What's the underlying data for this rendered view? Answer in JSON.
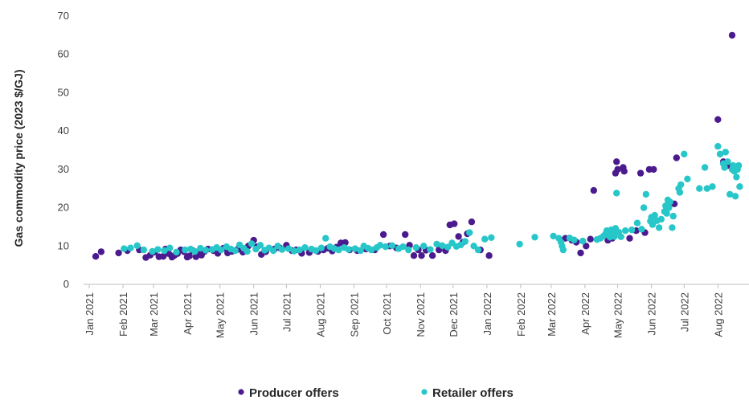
{
  "chart_data": {
    "type": "scatter",
    "title": "",
    "xlabel": "",
    "ylabel": "Gas commodity price (2023 $/GJ)",
    "ylim": [
      0,
      70
    ],
    "yticks": [
      0,
      10,
      20,
      30,
      40,
      50,
      60,
      70
    ],
    "grid": false,
    "legend_position": "bottom",
    "x_tick_labels": [
      "Jan 2021",
      "Feb 2021",
      "Mar 2021",
      "Apr 2021",
      "May 2021",
      "Jun 2021",
      "Jul 2021",
      "Aug 2021",
      "Sep 2021",
      "Oct 2021",
      "Nov 2021",
      "Dec 2021",
      "Jan 2022",
      "Feb 2022",
      "Mar 2022",
      "Apr 2022",
      "May 2022",
      "Jun 2022",
      "Jul 2022",
      "Aug 2022"
    ],
    "series": [
      {
        "name": "Producer offers",
        "color": "#4b1a8e",
        "points": [
          [
            "2021-01-07",
            7.3
          ],
          [
            "2021-01-12",
            8.5
          ],
          [
            "2021-01-28",
            8.2
          ],
          [
            "2021-02-05",
            8.8
          ],
          [
            "2021-02-16",
            9.0
          ],
          [
            "2021-02-22",
            7.0
          ],
          [
            "2021-02-26",
            7.6
          ],
          [
            "2021-03-02",
            8.4
          ],
          [
            "2021-03-06",
            7.2
          ],
          [
            "2021-03-10",
            7.3
          ],
          [
            "2021-03-12",
            9.2
          ],
          [
            "2021-03-15",
            8.0
          ],
          [
            "2021-03-18",
            7.1
          ],
          [
            "2021-03-20",
            7.5
          ],
          [
            "2021-03-23",
            8.0
          ],
          [
            "2021-03-26",
            9.0
          ],
          [
            "2021-03-29",
            8.5
          ],
          [
            "2021-04-01",
            7.1
          ],
          [
            "2021-04-03",
            7.4
          ],
          [
            "2021-04-06",
            8.8
          ],
          [
            "2021-04-09",
            7.2
          ],
          [
            "2021-04-11",
            8.3
          ],
          [
            "2021-04-14",
            7.6
          ],
          [
            "2021-04-17",
            8.6
          ],
          [
            "2021-04-20",
            9.2
          ],
          [
            "2021-04-25",
            8.8
          ],
          [
            "2021-04-29",
            8.1
          ],
          [
            "2021-05-04",
            9.4
          ],
          [
            "2021-05-08",
            8.2
          ],
          [
            "2021-05-12",
            8.6
          ],
          [
            "2021-05-17",
            9.1
          ],
          [
            "2021-05-22",
            8.4
          ],
          [
            "2021-05-27",
            10.0
          ],
          [
            "2021-06-01",
            11.5
          ],
          [
            "2021-06-04",
            9.8
          ],
          [
            "2021-06-08",
            7.8
          ],
          [
            "2021-06-12",
            8.5
          ],
          [
            "2021-06-20",
            9.2
          ],
          [
            "2021-06-25",
            9.5
          ],
          [
            "2021-07-01",
            10.2
          ],
          [
            "2021-07-06",
            8.8
          ],
          [
            "2021-07-10",
            9.0
          ],
          [
            "2021-07-15",
            8.1
          ],
          [
            "2021-07-22",
            8.3
          ],
          [
            "2021-07-30",
            8.6
          ],
          [
            "2021-08-04",
            9.0
          ],
          [
            "2021-08-08",
            9.4
          ],
          [
            "2021-08-12",
            8.7
          ],
          [
            "2021-08-16",
            9.7
          ],
          [
            "2021-08-20",
            10.8
          ],
          [
            "2021-08-24",
            10.9
          ],
          [
            "2021-08-28",
            9.0
          ],
          [
            "2021-09-04",
            8.8
          ],
          [
            "2021-09-12",
            9.2
          ],
          [
            "2021-09-20",
            9.0
          ],
          [
            "2021-09-28",
            13.0
          ],
          [
            "2021-10-04",
            10.0
          ],
          [
            "2021-10-10",
            9.5
          ],
          [
            "2021-10-18",
            13.0
          ],
          [
            "2021-10-22",
            10.2
          ],
          [
            "2021-10-26",
            7.5
          ],
          [
            "2021-10-30",
            9.0
          ],
          [
            "2021-11-02",
            7.5
          ],
          [
            "2021-11-06",
            8.9
          ],
          [
            "2021-11-12",
            7.5
          ],
          [
            "2021-11-18",
            9.0
          ],
          [
            "2021-11-24",
            8.8
          ],
          [
            "2021-11-28",
            15.5
          ],
          [
            "2021-12-02",
            15.8
          ],
          [
            "2021-12-06",
            12.5
          ],
          [
            "2021-12-10",
            11.0
          ],
          [
            "2021-12-14",
            13.2
          ],
          [
            "2021-12-18",
            16.3
          ],
          [
            "2021-12-26",
            9.0
          ],
          [
            "2022-01-03",
            7.5
          ],
          [
            "2022-03-14",
            12.0
          ],
          [
            "2022-03-20",
            11.5
          ],
          [
            "2022-03-24",
            11.0
          ],
          [
            "2022-03-28",
            8.2
          ],
          [
            "2022-04-02",
            10.0
          ],
          [
            "2022-04-06",
            11.8
          ],
          [
            "2022-04-09",
            24.5
          ],
          [
            "2022-04-22",
            11.5
          ],
          [
            "2022-04-26",
            12.0
          ],
          [
            "2022-04-29",
            29.0
          ],
          [
            "2022-04-30",
            32.0
          ],
          [
            "2022-05-01",
            30.0
          ],
          [
            "2022-05-06",
            30.5
          ],
          [
            "2022-05-07",
            29.5
          ],
          [
            "2022-05-12",
            12.0
          ],
          [
            "2022-05-18",
            14.0
          ],
          [
            "2022-05-22",
            29.0
          ],
          [
            "2022-05-26",
            13.5
          ],
          [
            "2022-05-30",
            30.0
          ],
          [
            "2022-06-03",
            30.0
          ],
          [
            "2022-06-22",
            21.0
          ],
          [
            "2022-06-24",
            33.0
          ],
          [
            "2022-08-01",
            43.0
          ],
          [
            "2022-08-14",
            65.0
          ],
          [
            "2022-08-06",
            32.0
          ],
          [
            "2022-08-10",
            31.0
          ]
        ]
      },
      {
        "name": "Retailer offers",
        "color": "#27c6c9",
        "points": [
          [
            "2021-02-02",
            9.3
          ],
          [
            "2021-02-08",
            9.5
          ],
          [
            "2021-02-14",
            10.1
          ],
          [
            "2021-02-20",
            9.0
          ],
          [
            "2021-02-28",
            8.6
          ],
          [
            "2021-03-05",
            9.1
          ],
          [
            "2021-03-11",
            8.8
          ],
          [
            "2021-03-16",
            9.5
          ],
          [
            "2021-03-22",
            8.4
          ],
          [
            "2021-03-30",
            9.0
          ],
          [
            "2021-04-04",
            9.2
          ],
          [
            "2021-04-08",
            8.6
          ],
          [
            "2021-04-13",
            9.4
          ],
          [
            "2021-04-18",
            8.9
          ],
          [
            "2021-04-24",
            9.1
          ],
          [
            "2021-04-28",
            9.6
          ],
          [
            "2021-05-02",
            9.0
          ],
          [
            "2021-05-07",
            9.8
          ],
          [
            "2021-05-11",
            9.2
          ],
          [
            "2021-05-15",
            8.8
          ],
          [
            "2021-05-19",
            10.3
          ],
          [
            "2021-05-23",
            9.4
          ],
          [
            "2021-05-26",
            8.6
          ],
          [
            "2021-05-30",
            10.6
          ],
          [
            "2021-06-03",
            9.2
          ],
          [
            "2021-06-07",
            10.2
          ],
          [
            "2021-06-11",
            8.9
          ],
          [
            "2021-06-15",
            9.5
          ],
          [
            "2021-06-19",
            8.8
          ],
          [
            "2021-06-23",
            10.0
          ],
          [
            "2021-06-27",
            9.1
          ],
          [
            "2021-07-03",
            9.3
          ],
          [
            "2021-07-08",
            8.7
          ],
          [
            "2021-07-13",
            9.0
          ],
          [
            "2021-07-18",
            9.6
          ],
          [
            "2021-07-24",
            9.2
          ],
          [
            "2021-07-28",
            8.8
          ],
          [
            "2021-08-02",
            9.5
          ],
          [
            "2021-08-06",
            12.0
          ],
          [
            "2021-08-10",
            9.8
          ],
          [
            "2021-08-14",
            9.3
          ],
          [
            "2021-08-18",
            9.0
          ],
          [
            "2021-08-23",
            9.6
          ],
          [
            "2021-08-27",
            9.1
          ],
          [
            "2021-09-02",
            9.3
          ],
          [
            "2021-09-07",
            8.8
          ],
          [
            "2021-09-10",
            10.0
          ],
          [
            "2021-09-14",
            9.4
          ],
          [
            "2021-09-17",
            9.0
          ],
          [
            "2021-09-22",
            9.6
          ],
          [
            "2021-09-25",
            10.2
          ],
          [
            "2021-09-30",
            9.8
          ],
          [
            "2021-10-06",
            10.1
          ],
          [
            "2021-10-12",
            9.3
          ],
          [
            "2021-10-16",
            9.8
          ],
          [
            "2021-10-21",
            9.0
          ],
          [
            "2021-10-28",
            9.6
          ],
          [
            "2021-11-04",
            10.0
          ],
          [
            "2021-11-10",
            9.1
          ],
          [
            "2021-11-16",
            10.5
          ],
          [
            "2021-11-21",
            10.1
          ],
          [
            "2021-11-26",
            9.7
          ],
          [
            "2021-11-30",
            10.8
          ],
          [
            "2021-12-04",
            9.9
          ],
          [
            "2021-12-08",
            10.3
          ],
          [
            "2021-12-12",
            11.2
          ],
          [
            "2021-12-16",
            13.5
          ],
          [
            "2021-12-20",
            10.0
          ],
          [
            "2021-12-24",
            9.0
          ],
          [
            "2021-12-30",
            11.8
          ],
          [
            "2022-01-05",
            12.2
          ],
          [
            "2022-01-31",
            10.5
          ],
          [
            "2022-02-14",
            12.3
          ],
          [
            "2022-03-03",
            12.6
          ],
          [
            "2022-03-08",
            12.0
          ],
          [
            "2022-03-10",
            11.0
          ],
          [
            "2022-03-11",
            10.0
          ],
          [
            "2022-03-12",
            9.0
          ],
          [
            "2022-03-18",
            12.1
          ],
          [
            "2022-03-22",
            11.6
          ],
          [
            "2022-03-30",
            11.3
          ],
          [
            "2022-04-12",
            11.7
          ],
          [
            "2022-04-15",
            12.0
          ],
          [
            "2022-04-18",
            12.6
          ],
          [
            "2022-04-20",
            13.2
          ],
          [
            "2022-04-21",
            14.0
          ],
          [
            "2022-04-23",
            13.5
          ],
          [
            "2022-04-24",
            12.3
          ],
          [
            "2022-04-25",
            14.2
          ],
          [
            "2022-04-27",
            13.0
          ],
          [
            "2022-04-28",
            12.5
          ],
          [
            "2022-04-29",
            14.6
          ],
          [
            "2022-04-30",
            23.8
          ],
          [
            "2022-05-02",
            13.6
          ],
          [
            "2022-05-04",
            12.4
          ],
          [
            "2022-05-08",
            14.0
          ],
          [
            "2022-05-14",
            14.2
          ],
          [
            "2022-05-19",
            16.0
          ],
          [
            "2022-05-23",
            14.4
          ],
          [
            "2022-05-25",
            20.0
          ],
          [
            "2022-05-27",
            23.5
          ],
          [
            "2022-05-31",
            16.5
          ],
          [
            "2022-06-01",
            17.5
          ],
          [
            "2022-06-02",
            15.6
          ],
          [
            "2022-06-04",
            18.0
          ],
          [
            "2022-06-06",
            16.6
          ],
          [
            "2022-06-08",
            14.8
          ],
          [
            "2022-06-10",
            17.0
          ],
          [
            "2022-06-13",
            19.0
          ],
          [
            "2022-06-14",
            20.5
          ],
          [
            "2022-06-15",
            18.5
          ],
          [
            "2022-06-16",
            22.0
          ],
          [
            "2022-06-17",
            20.0
          ],
          [
            "2022-06-18",
            21.5
          ],
          [
            "2022-06-20",
            14.8
          ],
          [
            "2022-06-21",
            17.8
          ],
          [
            "2022-06-26",
            25.0
          ],
          [
            "2022-06-27",
            24.0
          ],
          [
            "2022-06-28",
            26.0
          ],
          [
            "2022-07-01",
            34.0
          ],
          [
            "2022-07-04",
            27.5
          ],
          [
            "2022-07-15",
            25.0
          ],
          [
            "2022-07-20",
            30.5
          ],
          [
            "2022-07-22",
            25.0
          ],
          [
            "2022-07-27",
            25.5
          ],
          [
            "2022-08-01",
            36.0
          ],
          [
            "2022-08-03",
            34.0
          ],
          [
            "2022-08-06",
            31.5
          ],
          [
            "2022-08-07",
            30.5
          ],
          [
            "2022-08-08",
            34.5
          ],
          [
            "2022-08-10",
            32.0
          ],
          [
            "2022-08-12",
            23.5
          ],
          [
            "2022-08-14",
            30.0
          ],
          [
            "2022-08-15",
            31.0
          ],
          [
            "2022-08-16",
            29.5
          ],
          [
            "2022-08-17",
            23.0
          ],
          [
            "2022-08-18",
            28.0
          ],
          [
            "2022-08-19",
            30.0
          ],
          [
            "2022-08-20",
            31.0
          ],
          [
            "2022-08-21",
            25.5
          ]
        ]
      }
    ]
  }
}
